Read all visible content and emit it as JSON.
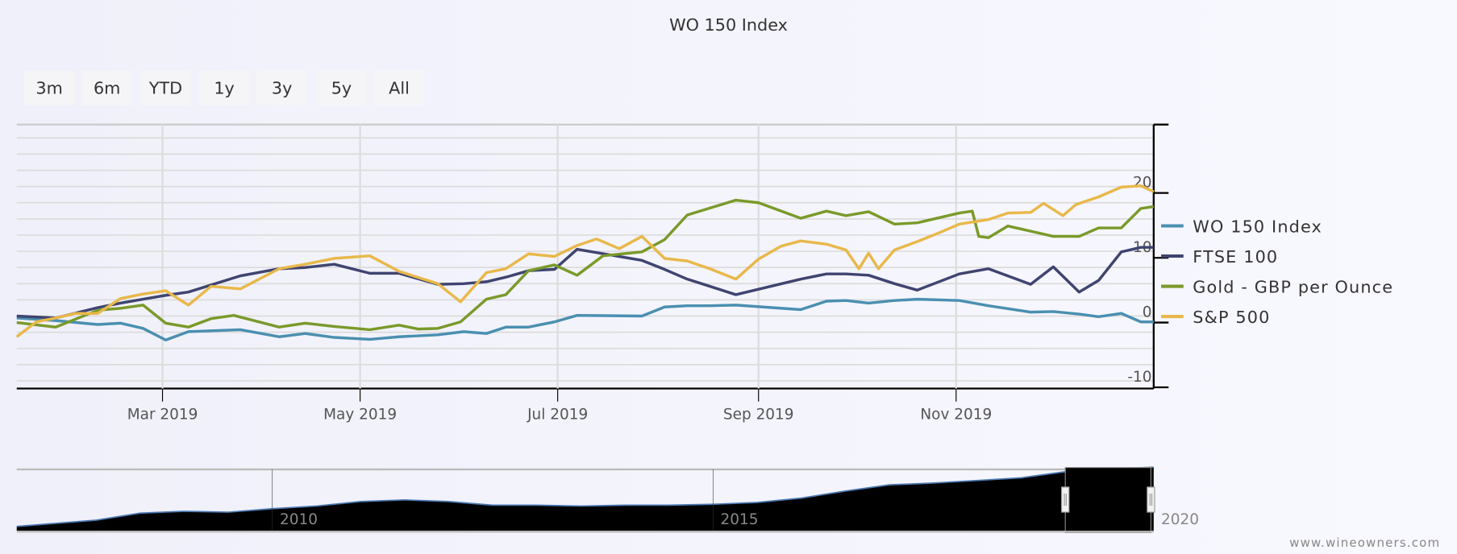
{
  "chart_data": {
    "type": "line",
    "title": "WO 150 Index",
    "range_selector": [
      "3m",
      "6m",
      "YTD",
      "1y",
      "3y",
      "5y",
      "All"
    ],
    "x_ticks": [
      "Mar 2019",
      "May 2019",
      "Jul 2019",
      "Sep 2019",
      "Nov 2019"
    ],
    "xlim": [
      "2019-01-15",
      "2020-01-01"
    ],
    "y_ticks": [
      "-10",
      "0",
      "10",
      "20"
    ],
    "ylim": [
      -10,
      30
    ],
    "grid": true,
    "legend_position": "right",
    "series": [
      {
        "name": "WO 150 Index",
        "color": "#4a8fb0",
        "points": [
          [
            "2019-01-15",
            0.7
          ],
          [
            "2019-01-27",
            0.3
          ],
          [
            "2019-02-09",
            -0.3
          ],
          [
            "2019-02-16",
            -0.1
          ],
          [
            "2019-02-23",
            -0.9
          ],
          [
            "2019-03-02",
            -2.7
          ],
          [
            "2019-03-09",
            -1.4
          ],
          [
            "2019-03-25",
            -1.1
          ],
          [
            "2019-04-06",
            -2.2
          ],
          [
            "2019-04-14",
            -1.7
          ],
          [
            "2019-04-23",
            -2.3
          ],
          [
            "2019-05-04",
            -2.6
          ],
          [
            "2019-05-13",
            -2.2
          ],
          [
            "2019-05-25",
            -1.9
          ],
          [
            "2019-06-02",
            -1.4
          ],
          [
            "2019-06-09",
            -1.7
          ],
          [
            "2019-06-15",
            -0.7
          ],
          [
            "2019-06-22",
            -0.7
          ],
          [
            "2019-06-30",
            0.1
          ],
          [
            "2019-07-07",
            1.1
          ],
          [
            "2019-07-27",
            1.0
          ],
          [
            "2019-08-03",
            2.4
          ],
          [
            "2019-08-10",
            2.6
          ],
          [
            "2019-08-17",
            2.6
          ],
          [
            "2019-08-25",
            2.7
          ],
          [
            "2019-09-14",
            2.0
          ],
          [
            "2019-09-22",
            3.3
          ],
          [
            "2019-09-28",
            3.4
          ],
          [
            "2019-10-05",
            3.0
          ],
          [
            "2019-10-13",
            3.4
          ],
          [
            "2019-10-20",
            3.6
          ],
          [
            "2019-11-02",
            3.4
          ],
          [
            "2019-11-11",
            2.6
          ],
          [
            "2019-11-24",
            1.6
          ],
          [
            "2019-12-01",
            1.7
          ],
          [
            "2019-12-09",
            1.3
          ],
          [
            "2019-12-15",
            0.9
          ],
          [
            "2019-12-22",
            1.4
          ],
          [
            "2019-12-28",
            0.1
          ],
          [
            "2020-01-01",
            0.1
          ]
        ]
      },
      {
        "name": "FTSE 100",
        "color": "#3f4470",
        "points": [
          [
            "2019-01-15",
            1.0
          ],
          [
            "2019-01-27",
            0.7
          ],
          [
            "2019-02-09",
            2.3
          ],
          [
            "2019-02-16",
            3.0
          ],
          [
            "2019-02-23",
            3.6
          ],
          [
            "2019-03-02",
            4.2
          ],
          [
            "2019-03-09",
            4.7
          ],
          [
            "2019-03-25",
            7.2
          ],
          [
            "2019-04-06",
            8.3
          ],
          [
            "2019-04-14",
            8.5
          ],
          [
            "2019-04-23",
            9.0
          ],
          [
            "2019-05-04",
            7.6
          ],
          [
            "2019-05-13",
            7.6
          ],
          [
            "2019-05-25",
            5.9
          ],
          [
            "2019-06-02",
            6.0
          ],
          [
            "2019-06-09",
            6.3
          ],
          [
            "2019-06-15",
            7.0
          ],
          [
            "2019-06-22",
            8.0
          ],
          [
            "2019-06-30",
            8.2
          ],
          [
            "2019-07-07",
            11.3
          ],
          [
            "2019-07-27",
            9.6
          ],
          [
            "2019-08-03",
            8.2
          ],
          [
            "2019-08-10",
            6.7
          ],
          [
            "2019-08-17",
            5.6
          ],
          [
            "2019-08-25",
            4.3
          ],
          [
            "2019-09-14",
            6.7
          ],
          [
            "2019-09-22",
            7.5
          ],
          [
            "2019-09-28",
            7.5
          ],
          [
            "2019-10-05",
            7.3
          ],
          [
            "2019-10-13",
            6.0
          ],
          [
            "2019-10-20",
            5.0
          ],
          [
            "2019-11-02",
            7.5
          ],
          [
            "2019-11-11",
            8.3
          ],
          [
            "2019-11-24",
            5.9
          ],
          [
            "2019-12-01",
            8.6
          ],
          [
            "2019-12-09",
            4.7
          ],
          [
            "2019-12-15",
            6.5
          ],
          [
            "2019-12-22",
            10.9
          ],
          [
            "2019-12-28",
            11.6
          ],
          [
            "2020-01-01",
            11.6
          ]
        ]
      },
      {
        "name": "Gold - GBP per Ounce",
        "color": "#7a9a2a",
        "points": [
          [
            "2019-01-15",
            0.0
          ],
          [
            "2019-01-27",
            -0.7
          ],
          [
            "2019-02-09",
            1.9
          ],
          [
            "2019-02-16",
            2.2
          ],
          [
            "2019-02-23",
            2.7
          ],
          [
            "2019-03-02",
            -0.1
          ],
          [
            "2019-03-09",
            -0.7
          ],
          [
            "2019-03-16",
            0.6
          ],
          [
            "2019-03-23",
            1.1
          ],
          [
            "2019-04-06",
            -0.7
          ],
          [
            "2019-04-14",
            -0.1
          ],
          [
            "2019-04-23",
            -0.6
          ],
          [
            "2019-05-04",
            -1.1
          ],
          [
            "2019-05-13",
            -0.4
          ],
          [
            "2019-05-19",
            -1.0
          ],
          [
            "2019-05-25",
            -0.9
          ],
          [
            "2019-06-01",
            0.1
          ],
          [
            "2019-06-09",
            3.6
          ],
          [
            "2019-06-15",
            4.3
          ],
          [
            "2019-06-22",
            8.0
          ],
          [
            "2019-06-30",
            8.9
          ],
          [
            "2019-07-07",
            7.3
          ],
          [
            "2019-07-15",
            10.3
          ],
          [
            "2019-07-27",
            10.9
          ],
          [
            "2019-08-03",
            12.8
          ],
          [
            "2019-08-10",
            16.6
          ],
          [
            "2019-08-25",
            18.9
          ],
          [
            "2019-09-01",
            18.5
          ],
          [
            "2019-09-14",
            16.1
          ],
          [
            "2019-09-22",
            17.2
          ],
          [
            "2019-09-28",
            16.5
          ],
          [
            "2019-10-05",
            17.1
          ],
          [
            "2019-10-13",
            15.2
          ],
          [
            "2019-10-20",
            15.4
          ],
          [
            "2019-11-02",
            16.9
          ],
          [
            "2019-11-06",
            17.2
          ],
          [
            "2019-11-08",
            13.3
          ],
          [
            "2019-11-11",
            13.1
          ],
          [
            "2019-11-17",
            14.9
          ],
          [
            "2019-11-24",
            14.1
          ],
          [
            "2019-12-01",
            13.3
          ],
          [
            "2019-12-09",
            13.3
          ],
          [
            "2019-12-15",
            14.6
          ],
          [
            "2019-12-22",
            14.6
          ],
          [
            "2019-12-28",
            17.6
          ],
          [
            "2020-01-01",
            17.9
          ]
        ]
      },
      {
        "name": "S&P 500",
        "color": "#e8b84a",
        "points": [
          [
            "2019-01-15",
            -2.2
          ],
          [
            "2019-01-21",
            0.1
          ],
          [
            "2019-01-27",
            0.7
          ],
          [
            "2019-02-02",
            1.4
          ],
          [
            "2019-02-09",
            1.4
          ],
          [
            "2019-02-16",
            3.7
          ],
          [
            "2019-02-23",
            4.4
          ],
          [
            "2019-03-02",
            4.9
          ],
          [
            "2019-03-09",
            2.7
          ],
          [
            "2019-03-16",
            5.6
          ],
          [
            "2019-03-25",
            5.2
          ],
          [
            "2019-04-06",
            8.3
          ],
          [
            "2019-04-14",
            9.0
          ],
          [
            "2019-04-23",
            9.9
          ],
          [
            "2019-05-04",
            10.3
          ],
          [
            "2019-05-13",
            7.9
          ],
          [
            "2019-05-25",
            6.0
          ],
          [
            "2019-06-01",
            3.2
          ],
          [
            "2019-06-09",
            7.7
          ],
          [
            "2019-06-15",
            8.3
          ],
          [
            "2019-06-22",
            10.6
          ],
          [
            "2019-06-30",
            10.2
          ],
          [
            "2019-07-07",
            11.9
          ],
          [
            "2019-07-13",
            12.9
          ],
          [
            "2019-07-20",
            11.4
          ],
          [
            "2019-07-27",
            13.3
          ],
          [
            "2019-08-03",
            9.9
          ],
          [
            "2019-08-10",
            9.5
          ],
          [
            "2019-08-17",
            8.3
          ],
          [
            "2019-08-25",
            6.7
          ],
          [
            "2019-09-01",
            9.8
          ],
          [
            "2019-09-08",
            11.8
          ],
          [
            "2019-09-14",
            12.6
          ],
          [
            "2019-09-22",
            12.1
          ],
          [
            "2019-09-28",
            11.2
          ],
          [
            "2019-10-02",
            8.3
          ],
          [
            "2019-10-05",
            10.7
          ],
          [
            "2019-10-08",
            8.3
          ],
          [
            "2019-10-13",
            11.2
          ],
          [
            "2019-10-20",
            12.5
          ],
          [
            "2019-10-27",
            13.9
          ],
          [
            "2019-11-02",
            15.2
          ],
          [
            "2019-11-11",
            15.9
          ],
          [
            "2019-11-17",
            16.9
          ],
          [
            "2019-11-24",
            17.0
          ],
          [
            "2019-11-28",
            18.4
          ],
          [
            "2019-12-04",
            16.5
          ],
          [
            "2019-12-08",
            18.2
          ],
          [
            "2019-12-15",
            19.4
          ],
          [
            "2019-12-22",
            20.9
          ],
          [
            "2019-12-28",
            21.1
          ],
          [
            "2020-01-01",
            20.2
          ]
        ]
      }
    ],
    "navigator": {
      "x_ticks": [
        "2010",
        "2015",
        "2020"
      ],
      "selected_range": [
        "2019-01-15",
        "2020-01-01"
      ],
      "points": [
        [
          2007.1,
          5
        ],
        [
          2008,
          12
        ],
        [
          2008.5,
          20
        ],
        [
          2009,
          22
        ],
        [
          2009.5,
          21
        ],
        [
          2010,
          25
        ],
        [
          2010.5,
          28
        ],
        [
          2011,
          33
        ],
        [
          2011.5,
          35
        ],
        [
          2012,
          33
        ],
        [
          2012.5,
          29
        ],
        [
          2013,
          29
        ],
        [
          2013.5,
          28
        ],
        [
          2014,
          29
        ],
        [
          2014.5,
          29
        ],
        [
          2015,
          30
        ],
        [
          2015.5,
          32
        ],
        [
          2016,
          37
        ],
        [
          2016.5,
          45
        ],
        [
          2017,
          52
        ],
        [
          2017.5,
          54
        ],
        [
          2018,
          57
        ],
        [
          2018.5,
          60
        ],
        [
          2019,
          67
        ],
        [
          2019.5,
          70
        ],
        [
          2020,
          72
        ]
      ]
    },
    "credit": "www.wineowners.com"
  }
}
